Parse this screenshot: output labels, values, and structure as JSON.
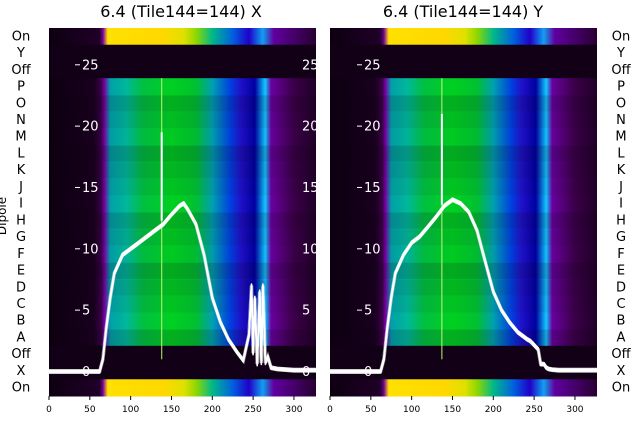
{
  "chart_data": [
    {
      "type": "heatmap",
      "title": "6.4 (Tile144=144) X",
      "xlabel": "",
      "ylabel": "Dipole",
      "xlim": [
        0,
        327
      ],
      "x_ticks": [
        0,
        50,
        100,
        150,
        200,
        250,
        300
      ],
      "ylim": [
        -2,
        28
      ],
      "y_ticks": [
        0,
        5,
        10,
        15,
        20,
        25
      ],
      "row_labels": [
        "On",
        "Y",
        "Off",
        "P",
        "O",
        "N",
        "M",
        "L",
        "K",
        "J",
        "I",
        "H",
        "G",
        "F",
        "E",
        "D",
        "C",
        "B",
        "A",
        "Off",
        "X",
        "On"
      ],
      "spike_x": 138,
      "series": [
        {
          "name": "",
          "x": [
            0,
            62,
            66,
            70,
            75,
            80,
            90,
            100,
            110,
            120,
            130,
            140,
            150,
            160,
            165,
            170,
            180,
            190,
            200,
            210,
            220,
            230,
            238,
            245,
            248,
            250,
            252,
            255,
            258,
            260,
            262,
            265,
            268,
            272,
            280,
            300,
            327
          ],
          "y": [
            0,
            0,
            1,
            3.5,
            6,
            8,
            9.5,
            10,
            10.5,
            11,
            11.5,
            12,
            12.8,
            13.5,
            13.7,
            13.2,
            12,
            9.5,
            6,
            4,
            2.6,
            1.6,
            0.9,
            3,
            7,
            1.5,
            6,
            0.6,
            6.5,
            0.7,
            7,
            0.7,
            1.2,
            0.3,
            0.2,
            0.1,
            0.1
          ]
        }
      ]
    },
    {
      "type": "heatmap",
      "title": "6.4 (Tile144=144) Y",
      "xlabel": "",
      "ylabel": "",
      "xlim": [
        0,
        327
      ],
      "x_ticks": [
        0,
        50,
        100,
        150,
        200,
        250,
        300
      ],
      "ylim": [
        -2,
        28
      ],
      "y_ticks": [
        0,
        5,
        10,
        15,
        20,
        25
      ],
      "row_labels": [
        "On",
        "Y",
        "Off",
        "P",
        "O",
        "N",
        "M",
        "L",
        "K",
        "J",
        "I",
        "H",
        "G",
        "F",
        "E",
        "D",
        "C",
        "B",
        "A",
        "Off",
        "X",
        "On"
      ],
      "spike_x": 137,
      "series": [
        {
          "name": "",
          "x": [
            0,
            62,
            66,
            70,
            75,
            80,
            90,
            100,
            110,
            120,
            130,
            140,
            150,
            160,
            170,
            180,
            190,
            200,
            210,
            220,
            230,
            238,
            242,
            245,
            248,
            252,
            255,
            258,
            262,
            265,
            268,
            272,
            280,
            300,
            327
          ],
          "y": [
            0,
            0,
            1,
            3.5,
            6,
            8,
            9.5,
            10.5,
            11,
            11.8,
            12.6,
            13.5,
            14,
            13.7,
            13,
            11.5,
            9,
            6.5,
            5,
            4,
            3.2,
            2.8,
            2.6,
            2.5,
            2.3,
            2,
            1.8,
            0.6,
            0.6,
            0.3,
            0.2,
            0.15,
            0.1,
            0.1,
            0.1
          ]
        }
      ]
    }
  ]
}
